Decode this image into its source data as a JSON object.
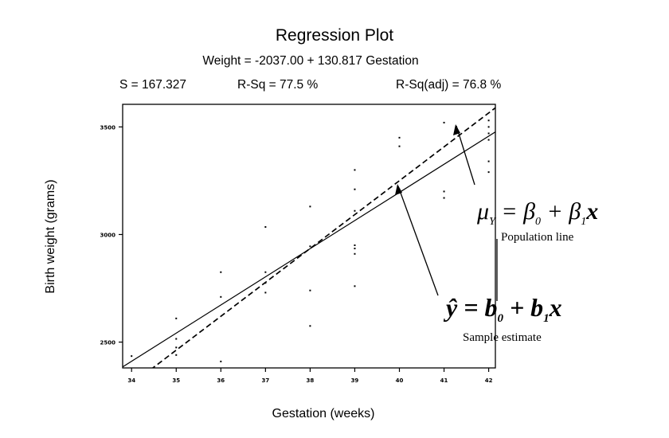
{
  "chart_data": {
    "type": "scatter",
    "title": "Regression Plot",
    "equation": "Weight = -2037.00 + 130.817 Gestation",
    "stats": {
      "s": "S = 167.327",
      "rsq": "R-Sq = 77.5 %",
      "rsq_adj": "R-Sq(adj) = 76.8 %"
    },
    "xlabel": "Gestation (weeks)",
    "ylabel": "Birth weight (grams)",
    "xlim": [
      33.8,
      42.15
    ],
    "ylim": [
      2380,
      3605
    ],
    "x_ticks": [
      34,
      35,
      36,
      37,
      38,
      39,
      40,
      41,
      42
    ],
    "y_ticks": [
      2500,
      3000,
      3500
    ],
    "points": [
      {
        "x": 34,
        "y": 2435
      },
      {
        "x": 35,
        "y": 2440
      },
      {
        "x": 35,
        "y": 2475
      },
      {
        "x": 35,
        "y": 2515
      },
      {
        "x": 35,
        "y": 2610
      },
      {
        "x": 36,
        "y": 2410
      },
      {
        "x": 36,
        "y": 2710
      },
      {
        "x": 36,
        "y": 2825
      },
      {
        "x": 37,
        "y": 2730
      },
      {
        "x": 37,
        "y": 2775
      },
      {
        "x": 37,
        "y": 2825
      },
      {
        "x": 37,
        "y": 3035
      },
      {
        "x": 38,
        "y": 2575
      },
      {
        "x": 38,
        "y": 2740
      },
      {
        "x": 38,
        "y": 2945
      },
      {
        "x": 38,
        "y": 3130
      },
      {
        "x": 39,
        "y": 2760
      },
      {
        "x": 39,
        "y": 2910
      },
      {
        "x": 39,
        "y": 2935
      },
      {
        "x": 39,
        "y": 2950
      },
      {
        "x": 39,
        "y": 3110
      },
      {
        "x": 39,
        "y": 3210
      },
      {
        "x": 39,
        "y": 3300
      },
      {
        "x": 40,
        "y": 3410
      },
      {
        "x": 40,
        "y": 3450
      },
      {
        "x": 40,
        "y": 3210
      },
      {
        "x": 41,
        "y": 3170
      },
      {
        "x": 41,
        "y": 3200
      },
      {
        "x": 41,
        "y": 3520
      },
      {
        "x": 42,
        "y": 3290
      },
      {
        "x": 42,
        "y": 3340
      },
      {
        "x": 42,
        "y": 3440
      },
      {
        "x": 42,
        "y": 3470
      },
      {
        "x": 42,
        "y": 3500
      },
      {
        "x": 42,
        "y": 3530
      }
    ],
    "lines": [
      {
        "name": "Sample estimate",
        "style": "solid",
        "intercept": -2037.0,
        "slope": 130.817
      },
      {
        "name": "Population line",
        "style": "dashed",
        "intercept": -3050.0,
        "slope": 157.5
      }
    ],
    "annotations": {
      "population": {
        "mu": "μ",
        "mu_sub": "Y",
        "rest": " = β",
        "sub0": "0",
        "plus": " + β",
        "sub1": "1",
        "x": "x",
        "caption": "Population line"
      },
      "sample": {
        "yhat": "ŷ",
        "rest": " = b",
        "sub0": "0",
        "plus": " + b",
        "sub1": "1",
        "x": "x",
        "caption": "Sample estimate"
      }
    }
  }
}
